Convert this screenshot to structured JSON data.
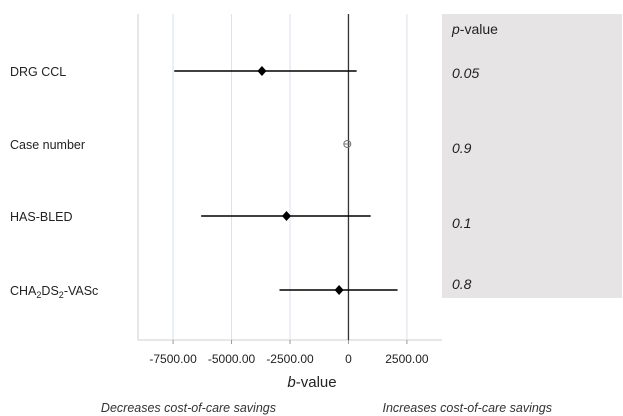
{
  "chart_data": {
    "type": "forest",
    "categories": [
      "DRG CCL",
      "Case number",
      "HAS-BLED",
      "CHA2DS2-VASc"
    ],
    "category_labels": [
      {
        "main": "DRG CCL"
      },
      {
        "main": "Case number"
      },
      {
        "main": "HAS-BLED"
      },
      {
        "main": "CHA",
        "sub1": "2",
        "mid": "DS",
        "sub2": "2",
        "tail": "-VASc"
      }
    ],
    "estimates": [
      -3700,
      -50,
      -2650,
      -400
    ],
    "ci_lower": [
      -7450,
      -50,
      -6300,
      -2950
    ],
    "ci_upper": [
      350,
      -50,
      950,
      2100
    ],
    "p_values": [
      "0.05",
      "0.9",
      "0.1",
      "0.8"
    ],
    "p_value_header_italic": "p",
    "p_value_header_rest": "-value",
    "xlabel_italic": "b",
    "xlabel_rest": "-value",
    "xlim": [
      -9000,
      4000
    ],
    "xticks": [
      -7500,
      -5000,
      -2500,
      0,
      2500
    ],
    "xtick_labels": [
      "-7500.00",
      "-5000.00",
      "-2500.00",
      "0",
      "2500.00"
    ],
    "reference_line": 0,
    "left_annotation": "Decreases cost-of-care savings",
    "right_annotation": "Increases cost-of-care savings",
    "colors": {
      "panel": "#e6e4e4",
      "grid": "#d9e2ea",
      "marker": "#000000",
      "axis": "#888888"
    }
  }
}
